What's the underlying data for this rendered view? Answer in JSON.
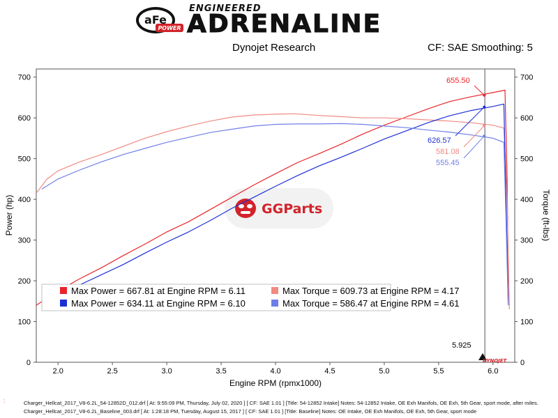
{
  "brand": {
    "badge_text": "aFe",
    "badge_sub": "POWER",
    "engineered": "ENGINEERED",
    "adrenaline": "ADRENALINE"
  },
  "header": {
    "source": "Dynojet Research",
    "correction": "CF: SAE Smoothing: 5"
  },
  "chart_data": {
    "type": "line",
    "xlabel": "Engine RPM (rpmx1000)",
    "ylabel_left": "Power (hp)",
    "ylabel_right": "Torque (ft-lbs)",
    "xlim": [
      1.8,
      6.2
    ],
    "ylim_left": [
      0,
      720
    ],
    "ylim_right": [
      0,
      720
    ],
    "x_ticks": [
      "2.0",
      "2.5",
      "3.0",
      "3.5",
      "4.0",
      "4.5",
      "5.0",
      "5.5",
      "6.0"
    ],
    "y_ticks_left": [
      "0",
      "100",
      "200",
      "300",
      "400",
      "500",
      "600",
      "700"
    ],
    "y_ticks_right": [
      "0",
      "100",
      "200",
      "300",
      "400",
      "500",
      "600",
      "700"
    ],
    "cursor_x": 5.925,
    "cursor_label": "5.925",
    "colors": {
      "run1_power": "#e8252a",
      "run1_torque": "#f08a82",
      "run2_power": "#1c2fd6",
      "run2_torque": "#6f7fe8"
    },
    "series": [
      {
        "key": "run1_power",
        "x": [
          1.8,
          2.0,
          2.2,
          2.4,
          2.6,
          2.8,
          3.0,
          3.2,
          3.4,
          3.6,
          3.8,
          4.0,
          4.2,
          4.4,
          4.6,
          4.8,
          5.0,
          5.2,
          5.4,
          5.6,
          5.8,
          6.0,
          6.11,
          6.13,
          6.14,
          6.15
        ],
        "y": [
          140,
          175,
          205,
          232,
          262,
          290,
          320,
          345,
          375,
          405,
          435,
          463,
          490,
          512,
          535,
          560,
          582,
          602,
          622,
          640,
          652,
          662,
          668,
          450,
          220,
          140
        ]
      },
      {
        "key": "run1_torque",
        "x": [
          1.8,
          1.9,
          2.0,
          2.2,
          2.4,
          2.6,
          2.8,
          3.0,
          3.2,
          3.4,
          3.6,
          3.8,
          4.0,
          4.17,
          4.4,
          4.6,
          4.8,
          5.0,
          5.2,
          5.4,
          5.6,
          5.8,
          6.0,
          6.1,
          6.13,
          6.15
        ],
        "y": [
          415,
          450,
          470,
          492,
          510,
          530,
          550,
          566,
          580,
          592,
          602,
          607,
          609,
          610,
          606,
          603,
          600,
          600,
          598,
          595,
          592,
          588,
          582,
          575,
          400,
          130
        ]
      },
      {
        "key": "run2_power",
        "x": [
          2.0,
          2.2,
          2.4,
          2.6,
          2.8,
          3.0,
          3.2,
          3.4,
          3.6,
          3.8,
          4.0,
          4.2,
          4.4,
          4.6,
          4.8,
          5.0,
          5.2,
          5.4,
          5.6,
          5.8,
          6.0,
          6.1,
          6.12,
          6.14
        ],
        "y": [
          165,
          190,
          215,
          240,
          268,
          295,
          320,
          348,
          378,
          405,
          432,
          458,
          482,
          503,
          525,
          548,
          568,
          588,
          605,
          618,
          628,
          634,
          400,
          150
        ]
      },
      {
        "key": "run2_torque",
        "x": [
          1.85,
          2.0,
          2.2,
          2.4,
          2.6,
          2.8,
          3.0,
          3.2,
          3.4,
          3.6,
          3.8,
          4.0,
          4.2,
          4.4,
          4.61,
          4.8,
          5.0,
          5.2,
          5.4,
          5.6,
          5.8,
          6.0,
          6.1,
          6.12,
          6.14
        ],
        "y": [
          425,
          450,
          472,
          492,
          510,
          525,
          540,
          552,
          564,
          572,
          580,
          584,
          585,
          585,
          586,
          584,
          580,
          576,
          570,
          565,
          558,
          550,
          540,
          350,
          140
        ]
      }
    ],
    "annotations": [
      {
        "text": "655.50",
        "color_key": "run1_power",
        "value": 655.5
      },
      {
        "text": "626.57",
        "color_key": "run2_power",
        "value": 626.57
      },
      {
        "text": "581.08",
        "color_key": "run1_torque",
        "value": 581.08
      },
      {
        "text": "555.45",
        "color_key": "run2_torque",
        "value": 555.45
      }
    ],
    "legend": [
      {
        "color_key": "run1_power",
        "text": "Max Power = 667.81 at Engine RPM = 6.11"
      },
      {
        "color_key": "run1_torque",
        "text": "Max Torque = 609.73 at Engine RPM = 4.17"
      },
      {
        "color_key": "run2_power",
        "text": "Max Power = 634.11 at Engine RPM = 6.10"
      },
      {
        "color_key": "run2_torque",
        "text": "Max Torque = 586.47 at Engine RPM = 4.61"
      }
    ],
    "legend_placement": "bottom-left",
    "grid": false
  },
  "watermark": {
    "text": "GGParts"
  },
  "dynojet_mark": "DYNOJET",
  "footer": {
    "mark": ":",
    "line1": "Charger_Hellcat_2017_V8-6.2L_54-12852D_012.drf [ At: 9:55:09 PM, Thursday, July 02, 2020 ] [ CF: SAE 1.01 ] [Title: 54-12852 Intake]  Notes: 54-12852 Intake, OE Exh Manifols, OE Exh, 5th Gear, sport mode, after miles.",
    "line2": "Charger_Hellcat_2017_V8-6.2L_Baseline_003.drf [ At: 1:28:18 PM, Tuesday, August 15, 2017 ] [ CF: SAE 1.01 ] [Title: Baseline]  Notes: OE Intake, OE Exh Manifols, OE Exh, 5th Gear, sport mode"
  }
}
